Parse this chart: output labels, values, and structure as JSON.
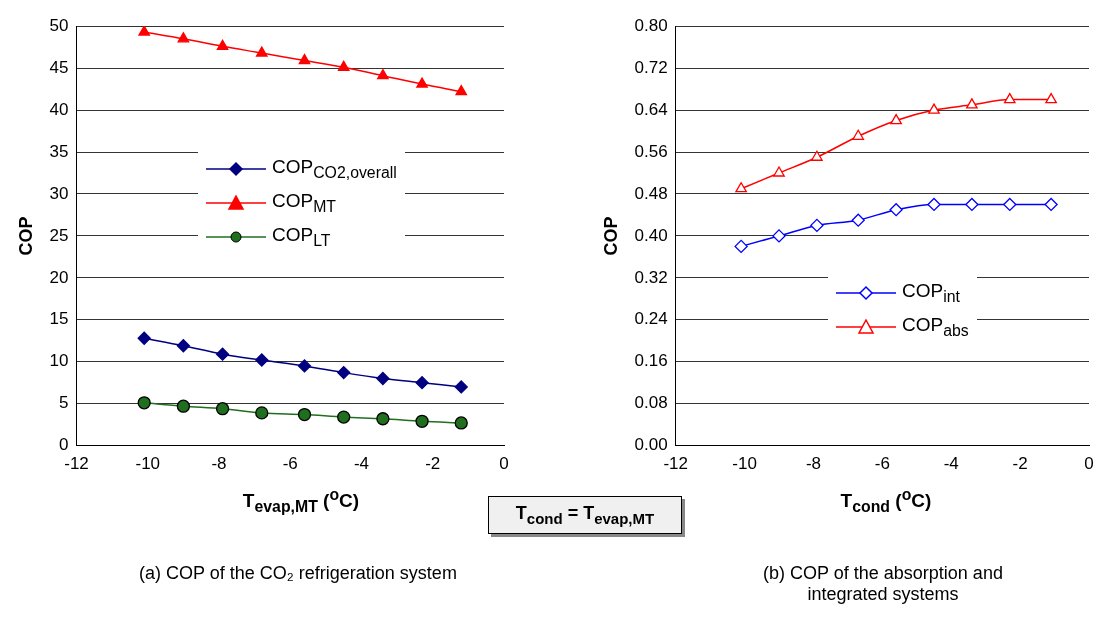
{
  "chart_data": [
    {
      "type": "line",
      "title": "(a) COP of the CO₂ refrigeration system",
      "xlabel": "T$_{evap,MT}$ ($^{o}$C)",
      "ylabel": "COP",
      "xlim": [
        -12,
        0
      ],
      "xticks": [
        -12,
        -10,
        -8,
        -6,
        -4,
        -2,
        0
      ],
      "ylim": [
        0,
        50
      ],
      "yticks": [
        0,
        5,
        10,
        15,
        20,
        25,
        30,
        35,
        40,
        45,
        50
      ],
      "grid": "y",
      "legend": "center",
      "line_style": "solid",
      "series": [
        {
          "name": "COP$_{CO2,overall}$",
          "color": "#000080",
          "marker": "diamond",
          "x": [
            -10.1,
            -9.0,
            -7.9,
            -6.8,
            -5.6,
            -4.5,
            -3.4,
            -2.3,
            -1.2
          ],
          "values": [
            12.8,
            11.9,
            10.9,
            10.2,
            9.5,
            8.7,
            8.0,
            7.5,
            7.0
          ]
        },
        {
          "name": "COP$_{MT}$",
          "color": "#ff0000",
          "marker": "triangle",
          "x": [
            -10.1,
            -9.0,
            -7.9,
            -6.8,
            -5.6,
            -4.5,
            -3.4,
            -2.3,
            -1.2
          ],
          "values": [
            49.3,
            48.5,
            47.6,
            46.8,
            45.9,
            45.1,
            44.1,
            43.1,
            42.2
          ]
        },
        {
          "name": "COP$_{LT}$",
          "color": "#1f6f1f",
          "marker": "circle",
          "x": [
            -10.1,
            -9.0,
            -7.9,
            -6.8,
            -5.6,
            -4.5,
            -3.4,
            -2.3,
            -1.2
          ],
          "values": [
            5.1,
            4.7,
            4.4,
            3.9,
            3.7,
            3.4,
            3.2,
            2.9,
            2.7
          ]
        }
      ]
    },
    {
      "type": "line",
      "title": "(b) COP of the absorption and integrated systems",
      "xlabel": "T$_{cond}$ ($^{o}$C)",
      "ylabel": "COP",
      "xlim": [
        -12,
        0
      ],
      "xticks": [
        -12,
        -10,
        -8,
        -6,
        -4,
        -2,
        0
      ],
      "ylim": [
        0,
        0.8
      ],
      "yticks": [
        {
          "value": 0,
          "label": "0.00"
        },
        {
          "value": 0.08,
          "label": "0.08"
        },
        {
          "value": 0.16,
          "label": "0.16"
        },
        {
          "value": 0.24,
          "label": "0.24"
        },
        {
          "value": 0.32,
          "label": "0.32"
        },
        {
          "value": 0.4,
          "label": "0.40"
        },
        {
          "value": 0.48,
          "label": "0.48"
        },
        {
          "value": 0.56,
          "label": "0.56"
        },
        {
          "value": 0.64,
          "label": "0.64"
        },
        {
          "value": 0.72,
          "label": "0.72"
        },
        {
          "value": 0.8,
          "label": "0.80"
        }
      ],
      "grid": "y",
      "legend": "bottom",
      "line_style": "solid",
      "annotations": [
        "T$_{cond}$ = T$_{evap,MT}$"
      ],
      "series": [
        {
          "name": "COP$_{int}$",
          "color": "#0000ff",
          "marker": "diamond",
          "x": [
            -10.1,
            -9.0,
            -7.9,
            -6.7,
            -5.6,
            -4.5,
            -3.4,
            -2.3,
            -1.1
          ],
          "values": [
            0.38,
            0.4,
            0.42,
            0.43,
            0.45,
            0.46,
            0.46,
            0.46,
            0.46
          ]
        },
        {
          "name": "COP$_{abs}$",
          "color": "#ff0000",
          "marker": "triangle",
          "x": [
            -10.1,
            -9.0,
            -7.9,
            -6.7,
            -5.6,
            -4.5,
            -3.4,
            -2.3,
            -1.1
          ],
          "values": [
            0.49,
            0.52,
            0.55,
            0.59,
            0.62,
            0.64,
            0.65,
            0.66,
            0.66
          ]
        }
      ]
    }
  ]
}
